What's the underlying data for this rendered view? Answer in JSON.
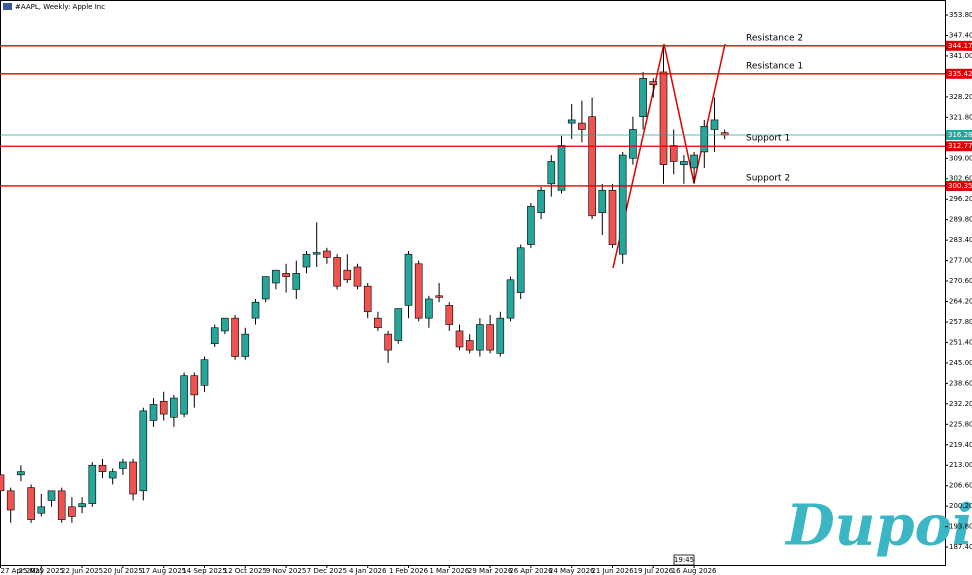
{
  "chart_data": {
    "type": "candlestick",
    "title": "#AAPL, Weekly:  Apple Inc",
    "categories": [
      "27 Apr 2025",
      null,
      null,
      null,
      "25 May 2025",
      null,
      null,
      null,
      "22 Jun 2025",
      null,
      null,
      null,
      "20 Jul 2025",
      null,
      null,
      null,
      "17 Aug 2025",
      null,
      null,
      null,
      "14 Sep 2025",
      null,
      null,
      null,
      "12 Oct 2025",
      null,
      null,
      null,
      "9 Nov 2025",
      null,
      null,
      null,
      "7 Dec 2025",
      null,
      null,
      null,
      "4 Jan 2026",
      null,
      null,
      null,
      "1 Feb 2026",
      null,
      null,
      null,
      "1 Mar 2026",
      null,
      null,
      null,
      "29 Mar 2026",
      null,
      null,
      null,
      "26 Apr 2026",
      null,
      null,
      null,
      "24 May 2026",
      null,
      null,
      null,
      "21 Jun 2026",
      null,
      null,
      null,
      "19 Jul 2026",
      null,
      null,
      null,
      "16 Aug 2026",
      null,
      null,
      null
    ],
    "open": [
      210,
      205,
      210,
      206,
      198,
      202,
      205,
      200,
      200,
      201,
      213,
      209,
      212,
      214,
      205,
      227,
      233,
      228,
      229,
      241,
      238,
      251,
      255,
      259,
      247,
      259,
      265,
      270,
      273,
      268,
      275,
      279,
      280,
      278,
      274,
      275,
      269,
      259,
      254,
      252,
      263,
      276,
      259,
      266,
      263,
      255,
      252,
      249,
      257,
      248,
      259,
      267,
      282,
      292,
      301,
      299,
      320,
      320,
      322,
      292,
      299,
      279,
      309,
      322,
      333,
      336,
      313,
      307,
      306,
      311,
      318,
      317
    ],
    "high": [
      213,
      206,
      213,
      207,
      204,
      205,
      206,
      203,
      203,
      214,
      215,
      212,
      215,
      215,
      231,
      234,
      236,
      235,
      242,
      242,
      247,
      257,
      259,
      260,
      256,
      265,
      272,
      274,
      276,
      277,
      280,
      289,
      281,
      279,
      279,
      276,
      270,
      261,
      255,
      262,
      280,
      277,
      266,
      270,
      264,
      257,
      254,
      259,
      260,
      261,
      272,
      282,
      295,
      300,
      310,
      316,
      326,
      327,
      328,
      301,
      301,
      311,
      322,
      336,
      334,
      344,
      318,
      310,
      311,
      321,
      328,
      318
    ],
    "low": [
      200,
      195,
      208,
      195,
      197,
      200,
      195,
      195,
      198,
      200,
      209,
      207,
      210,
      202,
      202,
      225,
      227,
      225,
      228,
      231,
      236,
      250,
      254,
      246,
      246,
      257,
      264,
      268,
      267,
      265,
      273,
      275,
      276,
      268,
      270,
      268,
      259,
      255,
      245,
      251,
      259,
      258,
      256,
      264,
      255,
      249,
      248,
      247,
      248,
      247,
      258,
      265,
      281,
      290,
      297,
      298,
      315,
      314,
      290,
      285,
      281,
      276,
      307,
      318,
      328,
      301,
      304,
      301,
      301,
      306,
      311,
      315
    ],
    "close": [
      205,
      199,
      211,
      196,
      200,
      205,
      196,
      197,
      201,
      213,
      211,
      211,
      214,
      204,
      230,
      232,
      229,
      234,
      241,
      235,
      246,
      256,
      259,
      247,
      254,
      264,
      272,
      274,
      272,
      273,
      279,
      279.5,
      278,
      269,
      271,
      269,
      261,
      256,
      249,
      262,
      279,
      259,
      265,
      265.5,
      257,
      250,
      249,
      257,
      249,
      259,
      271,
      281,
      294,
      299,
      308,
      313,
      321,
      318,
      291,
      299,
      282,
      310,
      318,
      334,
      332,
      307,
      308,
      308,
      310,
      319,
      321,
      316.28
    ],
    "up_color": "#26a69a",
    "down_color": "#ef5350",
    "ylim": [
      181.8,
      358.5
    ],
    "yticks": [
      {
        "value": 187.4,
        "label": "187.40"
      },
      {
        "value": 193.8,
        "label": "193.80"
      },
      {
        "value": 200.2,
        "label": "200.20"
      },
      {
        "value": 206.6,
        "label": "206.60"
      },
      {
        "value": 213,
        "label": "213.00"
      },
      {
        "value": 219.4,
        "label": "219.40"
      },
      {
        "value": 225.8,
        "label": "225.80"
      },
      {
        "value": 232.2,
        "label": "232.20"
      },
      {
        "value": 238.6,
        "label": "238.60"
      },
      {
        "value": 245,
        "label": "245.00"
      },
      {
        "value": 251.4,
        "label": "251.40"
      },
      {
        "value": 257.8,
        "label": "257.80"
      },
      {
        "value": 264.2,
        "label": "264.20"
      },
      {
        "value": 270.6,
        "label": "270.60"
      },
      {
        "value": 277,
        "label": "277.00"
      },
      {
        "value": 283.4,
        "label": "283.40"
      },
      {
        "value": 289.8,
        "label": "289.80"
      },
      {
        "value": 296.2,
        "label": "296.20"
      },
      {
        "value": 302.6,
        "label": "302.60"
      },
      {
        "value": 309,
        "label": "309.00"
      },
      {
        "value": 315.4,
        "label": "315.40"
      },
      {
        "value": 321.8,
        "label": "321.80"
      },
      {
        "value": 328.2,
        "label": "328.20"
      },
      {
        "value": 334.6,
        "label": "334.60"
      },
      {
        "value": 341,
        "label": "341.00"
      },
      {
        "value": 347.4,
        "label": "347.40"
      },
      {
        "value": 353.8,
        "label": "353.80"
      }
    ],
    "levels": [
      {
        "name": "Resistance 2",
        "value": 344.17,
        "color": "#e00000"
      },
      {
        "name": "Resistance 1",
        "value": 335.42,
        "color": "#e00000"
      },
      {
        "name": "Support 1",
        "value": 312.77,
        "color": "#e00000"
      },
      {
        "name": "Support 2",
        "value": 300.35,
        "color": "#e00000"
      }
    ],
    "current_price": {
      "value": 316.28,
      "color": "#26a69a"
    },
    "time_label": "19:45",
    "logo": "Dupoin"
  }
}
